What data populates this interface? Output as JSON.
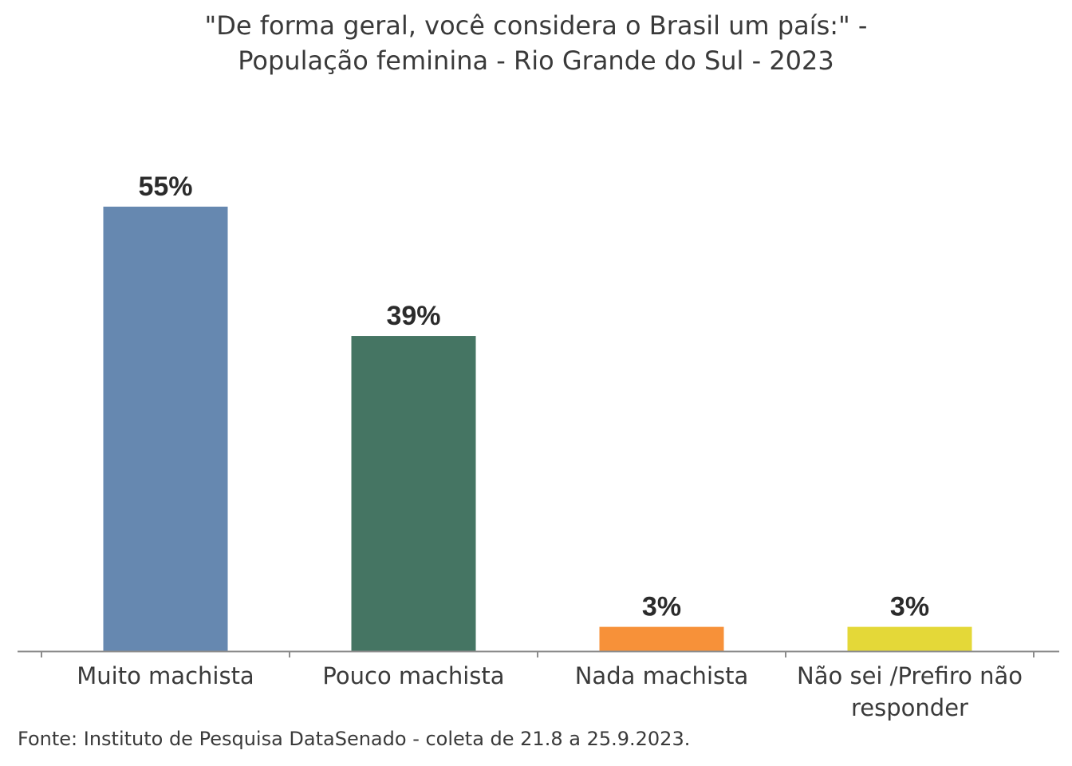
{
  "chart_data": {
    "type": "bar",
    "title_lines": [
      "\"De forma geral, você considera o Brasil um país:\" -",
      "População feminina - Rio Grande do Sul - 2023"
    ],
    "categories": [
      [
        "Muito machista"
      ],
      [
        "Pouco machista"
      ],
      [
        "Nada machista"
      ],
      [
        "Não sei /Prefiro não",
        "responder"
      ]
    ],
    "values": [
      55,
      39,
      3,
      3
    ],
    "value_labels": [
      "55%",
      "39%",
      "3%",
      "3%"
    ],
    "colors": [
      "#6688b0",
      "#457563",
      "#f79139",
      "#e4d838"
    ],
    "ylim": [
      0,
      55
    ],
    "xlabel": "",
    "ylabel": "",
    "grid": false,
    "legend": "none"
  },
  "source": "Fonte: Instituto de Pesquisa DataSenado - coleta de 21.8 a 25.9.2023."
}
